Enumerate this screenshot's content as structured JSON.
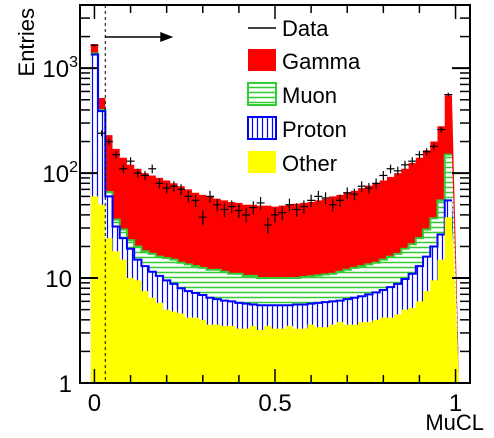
{
  "chart_data": {
    "type": "area",
    "xlabel": "MuCL",
    "ylabel": "Entries",
    "xlim": [
      -0.04,
      1.04
    ],
    "ylim": [
      1,
      4000
    ],
    "y_scale": "log",
    "x_ticks": [
      {
        "value": 0,
        "label": "0"
      },
      {
        "value": 0.5,
        "label": "0.5"
      },
      {
        "value": 1,
        "label": "1"
      }
    ],
    "y_ticks": [
      {
        "value": 1,
        "label": "1"
      },
      {
        "value": 10,
        "label": "10"
      },
      {
        "value": 100,
        "label": "10",
        "exponent": "2"
      },
      {
        "value": 1000,
        "label": "10",
        "exponent": "3"
      }
    ],
    "cut_line": {
      "x": 0.03,
      "style": "dashed",
      "arrow": "right"
    },
    "legend": {
      "position": "top-right",
      "entries": [
        {
          "label": "Data",
          "style": "line",
          "color": "#000000"
        },
        {
          "label": "Gamma",
          "style": "fill",
          "color": "#ff0000"
        },
        {
          "label": "Muon",
          "style": "hatch-horizontal",
          "color": "#33cc33"
        },
        {
          "label": "Proton",
          "style": "hatch-vertical",
          "color": "#0000ff"
        },
        {
          "label": "Other",
          "style": "fill",
          "color": "#ffff00"
        }
      ]
    },
    "bin_edges": [
      -0.01,
      0.01,
      0.03,
      0.05,
      0.07,
      0.09,
      0.11,
      0.13,
      0.15,
      0.17,
      0.19,
      0.21,
      0.23,
      0.25,
      0.27,
      0.29,
      0.31,
      0.33,
      0.35,
      0.37,
      0.39,
      0.41,
      0.43,
      0.45,
      0.47,
      0.49,
      0.51,
      0.53,
      0.55,
      0.57,
      0.59,
      0.61,
      0.63,
      0.65,
      0.67,
      0.69,
      0.71,
      0.73,
      0.75,
      0.77,
      0.79,
      0.81,
      0.83,
      0.85,
      0.87,
      0.89,
      0.91,
      0.93,
      0.95,
      0.97,
      0.99,
      1.01
    ],
    "series": [
      {
        "name": "Other",
        "color": "#ffff00",
        "values": [
          60,
          50,
          24,
          18,
          15,
          10,
          9.5,
          7.5,
          6.5,
          5.8,
          5,
          4.8,
          4.6,
          4.2,
          4.2,
          4.0,
          3.6,
          3.6,
          3.5,
          3.5,
          3.3,
          3.3,
          3.5,
          3.2,
          3.5,
          3.3,
          3.3,
          3.5,
          3.3,
          3.3,
          3.6,
          3.4,
          3.4,
          3.6,
          3.8,
          3.6,
          3.6,
          3.8,
          3.8,
          4.0,
          4.2,
          4.2,
          4.5,
          5.0,
          5.2,
          6.0,
          7.5,
          9.5,
          15,
          38
        ]
      },
      {
        "name": "Proton",
        "color": "#0000ff",
        "values": [
          1350,
          390,
          60,
          31,
          24,
          19,
          15,
          13,
          11.5,
          10.5,
          9.5,
          8.8,
          8.0,
          7.5,
          7.2,
          6.9,
          6.5,
          6.3,
          6.1,
          6.0,
          5.8,
          5.7,
          5.6,
          5.5,
          5.5,
          5.5,
          5.5,
          5.5,
          5.6,
          5.6,
          5.7,
          5.8,
          5.9,
          6.0,
          6.1,
          6.3,
          6.5,
          6.7,
          7.0,
          7.3,
          7.7,
          8.2,
          8.8,
          9.8,
          11.0,
          13.0,
          16.0,
          20.0,
          26.0,
          55
        ]
      },
      {
        "name": "Muon",
        "color": "#33cc33",
        "values": [
          1380,
          400,
          66,
          36,
          29,
          23,
          20,
          18,
          17,
          16,
          15.5,
          15,
          14,
          13.5,
          13,
          12.5,
          12,
          12,
          11.5,
          11,
          11,
          10.5,
          10.5,
          10,
          10,
          10,
          10,
          10,
          10,
          10.2,
          10.4,
          10.6,
          10.8,
          11,
          11.5,
          12,
          12.5,
          13,
          13.5,
          14,
          15,
          16,
          17,
          19,
          21,
          24,
          29,
          37,
          55,
          150
        ]
      },
      {
        "name": "Gamma",
        "color": "#ff0000",
        "values": [
          1700,
          520,
          230,
          170,
          140,
          120,
          110,
          100,
          95,
          90,
          85,
          80,
          75,
          70,
          65,
          62,
          60,
          57,
          55,
          53,
          52,
          50,
          50,
          49,
          49,
          48,
          49,
          50,
          51,
          52,
          53,
          55,
          57,
          60,
          62,
          65,
          68,
          72,
          76,
          80,
          85,
          92,
          100,
          110,
          125,
          140,
          165,
          200,
          280,
          550
        ]
      },
      {
        "name": "Data",
        "color": "#000000",
        "values": [
          1650,
          240,
          200,
          150,
          110,
          130,
          100,
          95,
          110,
          80,
          72,
          75,
          70,
          60,
          55,
          38,
          60,
          50,
          45,
          48,
          44,
          40,
          47,
          52,
          32,
          40,
          42,
          50,
          45,
          48,
          55,
          60,
          58,
          50,
          55,
          65,
          63,
          75,
          72,
          80,
          95,
          110,
          105,
          120,
          130,
          150,
          160,
          180,
          260,
          560
        ]
      }
    ]
  }
}
